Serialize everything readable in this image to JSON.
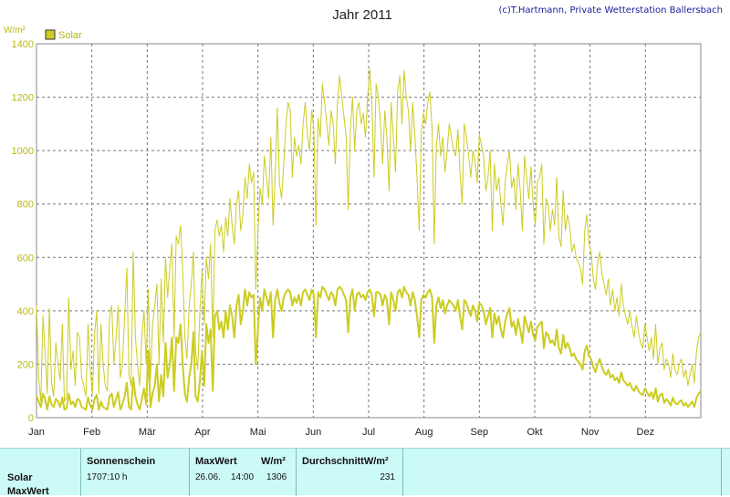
{
  "chart_data": {
    "type": "line",
    "title": "Jahr 2011",
    "credit": "(c)T.Hartmann, Private Wetterstation Ballersbach",
    "ylabel": "W/m²",
    "ylim": [
      0,
      1400
    ],
    "yticks": [
      0,
      200,
      400,
      600,
      800,
      1000,
      1200,
      1400
    ],
    "xlabels": [
      "Jan",
      "Feb",
      "Mär",
      "Apr",
      "Mai",
      "Jun",
      "Jul",
      "Aug",
      "Sep",
      "Okt",
      "Nov",
      "Dez"
    ],
    "grid": true,
    "legend": "top-left",
    "series": [
      {
        "name": "Solar",
        "color": "#cccc22",
        "daily_max": [
          420,
          150,
          60,
          380,
          250,
          90,
          410,
          130,
          80,
          280,
          200,
          140,
          350,
          60,
          80,
          450,
          180,
          250,
          120,
          320,
          300,
          150,
          120,
          80,
          350,
          180,
          90,
          310,
          400,
          90,
          350,
          200,
          120,
          100,
          380,
          420,
          200,
          300,
          420,
          150,
          200,
          380,
          560,
          160,
          120,
          620,
          300,
          200,
          120,
          300,
          400,
          200,
          480,
          140,
          350,
          420,
          500,
          200,
          520,
          280,
          600,
          450,
          560,
          650,
          300,
          680,
          650,
          720,
          550,
          300,
          220,
          420,
          500,
          620,
          250,
          180,
          400,
          550,
          350,
          600,
          520,
          650,
          300,
          700,
          740,
          680,
          720,
          620,
          750,
          680,
          820,
          720,
          650,
          800,
          850,
          700,
          760,
          900,
          820,
          950,
          880,
          920,
          480,
          700,
          860,
          800,
          980,
          900,
          820,
          1050,
          720,
          900,
          1160,
          880,
          820,
          950,
          1100,
          1180,
          1150,
          900,
          1050,
          980,
          1020,
          950,
          1100,
          1180,
          1060,
          1000,
          1150,
          1080,
          720,
          1120,
          1050,
          1250,
          1180,
          1100,
          1020,
          1150,
          1100,
          950,
          1180,
          1280,
          1200,
          1130,
          1050,
          780,
          1080,
          1200,
          1000,
          1150,
          1180,
          1100,
          1140,
          1050,
          1190,
          1306,
          1180,
          900,
          1250,
          1200,
          1100,
          950,
          1150,
          1050,
          850,
          1180,
          1050,
          920,
          1220,
          1280,
          1100,
          1300,
          1200,
          1150,
          1000,
          1180,
          1050,
          900,
          700,
          1060,
          1140,
          1100,
          1180,
          1220,
          1080,
          650,
          1020,
          1100,
          980,
          1050,
          920,
          1000,
          1100,
          1050,
          1000,
          980,
          1080,
          920,
          800,
          1100,
          1050,
          980,
          900,
          1000,
          960,
          880,
          1060,
          1020,
          980,
          850,
          900,
          1000,
          700,
          950,
          850,
          900,
          800,
          720,
          880,
          950,
          1000,
          860,
          900,
          780,
          950,
          850,
          700,
          980,
          900,
          820,
          940,
          800,
          720,
          880,
          900,
          950,
          650,
          820,
          800,
          700,
          780,
          720,
          900,
          680,
          640,
          850,
          700,
          760,
          720,
          620,
          650,
          600,
          580,
          560,
          500,
          700,
          760,
          650,
          620,
          520,
          480,
          580,
          620,
          540,
          500,
          460,
          520,
          420,
          480,
          400,
          450,
          380,
          500,
          420,
          380,
          350,
          400,
          340,
          300,
          380,
          320,
          280,
          260,
          350,
          300,
          250,
          300,
          220,
          350,
          200,
          260,
          280,
          180,
          220,
          200,
          150,
          240,
          180,
          160,
          200,
          220,
          150,
          180,
          120,
          160,
          200,
          130,
          250,
          300,
          320
        ],
        "daily_mean": [
          80,
          60,
          40,
          90,
          70,
          30,
          80,
          50,
          40,
          70,
          60,
          40,
          75,
          30,
          35,
          90,
          50,
          60,
          40,
          70,
          65,
          40,
          35,
          30,
          75,
          45,
          30,
          70,
          85,
          30,
          60,
          40,
          35,
          30,
          80,
          90,
          40,
          70,
          95,
          30,
          50,
          80,
          130,
          40,
          30,
          150,
          80,
          50,
          30,
          70,
          110,
          50,
          250,
          40,
          90,
          120,
          200,
          60,
          160,
          80,
          280,
          150,
          200,
          300,
          100,
          300,
          280,
          350,
          200,
          90,
          60,
          150,
          200,
          320,
          80,
          60,
          140,
          250,
          120,
          350,
          280,
          330,
          100,
          380,
          400,
          330,
          360,
          300,
          400,
          330,
          420,
          380,
          300,
          420,
          460,
          350,
          400,
          480,
          420,
          470,
          450,
          460,
          200,
          330,
          450,
          400,
          480,
          450,
          420,
          470,
          300,
          440,
          480,
          430,
          400,
          450,
          470,
          480,
          470,
          420,
          450,
          430,
          460,
          420,
          470,
          480,
          460,
          440,
          480,
          460,
          300,
          470,
          450,
          490,
          480,
          460,
          440,
          470,
          460,
          420,
          480,
          490,
          480,
          460,
          440,
          320,
          450,
          480,
          400,
          460,
          470,
          450,
          460,
          440,
          470,
          480,
          460,
          380,
          470,
          470,
          460,
          420,
          460,
          440,
          350,
          470,
          440,
          400,
          470,
          480,
          450,
          490,
          470,
          460,
          420,
          470,
          440,
          380,
          300,
          440,
          460,
          450,
          470,
          480,
          450,
          280,
          420,
          450,
          410,
          440,
          390,
          420,
          440,
          430,
          420,
          400,
          440,
          380,
          330,
          440,
          430,
          400,
          380,
          420,
          400,
          360,
          430,
          420,
          400,
          350,
          380,
          410,
          300,
          390,
          350,
          380,
          330,
          300,
          360,
          390,
          410,
          340,
          360,
          310,
          370,
          330,
          280,
          380,
          350,
          320,
          360,
          310,
          290,
          340,
          350,
          360,
          260,
          320,
          310,
          280,
          290,
          270,
          330,
          260,
          240,
          310,
          260,
          280,
          260,
          230,
          240,
          220,
          210,
          200,
          180,
          250,
          270,
          230,
          220,
          190,
          170,
          200,
          220,
          190,
          170,
          160,
          180,
          150,
          160,
          140,
          150,
          130,
          170,
          140,
          130,
          120,
          130,
          110,
          100,
          120,
          100,
          90,
          85,
          110,
          95,
          80,
          95,
          70,
          110,
          60,
          85,
          90,
          55,
          70,
          60,
          45,
          75,
          55,
          50,
          60,
          65,
          45,
          55,
          40,
          50,
          60,
          40,
          75,
          90,
          100
        ]
      }
    ]
  },
  "legend": {
    "swatch_color": "#cccc22",
    "label": "Solar"
  },
  "stats_table": {
    "row_labels": [
      "Solar",
      "MaxWert"
    ],
    "sonnenschein": {
      "header": "Sonnenschein",
      "value": "1707:10 h"
    },
    "maxwert": {
      "header": "MaxWert",
      "unit": "W/m²",
      "date": "26.06.",
      "time": "14:00",
      "value": "1306"
    },
    "durchschnitt": {
      "header": "DurchschnittW/m²",
      "value": "231"
    }
  }
}
